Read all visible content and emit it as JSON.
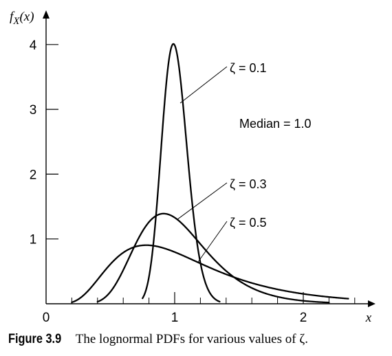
{
  "chart_data": {
    "type": "line",
    "title": "",
    "xlabel": "x",
    "ylabel_parts": {
      "base": "f",
      "sub": "X",
      "arg": "(x)"
    },
    "xlim": [
      -0.05,
      2.55
    ],
    "ylim": [
      0,
      4.4
    ],
    "x_ticks": [
      0,
      1,
      2
    ],
    "y_ticks": [
      1,
      2,
      3,
      4
    ],
    "x_tick_labels": [
      "0",
      "1",
      "2"
    ],
    "y_tick_labels": [
      "1",
      "2",
      "3",
      "4"
    ],
    "x_minor_step": 0.2,
    "median_value": 1.0,
    "annotation": "Median = 1.0",
    "grid": false,
    "series": [
      {
        "name": "ζ = 0.1",
        "zeta": 0.1,
        "x_range": [
          0.75,
          1.35
        ]
      },
      {
        "name": "ζ = 0.3",
        "zeta": 0.3,
        "x_range": [
          0.4,
          2.2
        ]
      },
      {
        "name": "ζ = 0.5",
        "zeta": 0.5,
        "x_range": [
          0.2,
          2.35
        ]
      }
    ]
  },
  "caption": {
    "label": "Figure 3.9",
    "text": "The lognormal PDFs for various values of ζ."
  }
}
